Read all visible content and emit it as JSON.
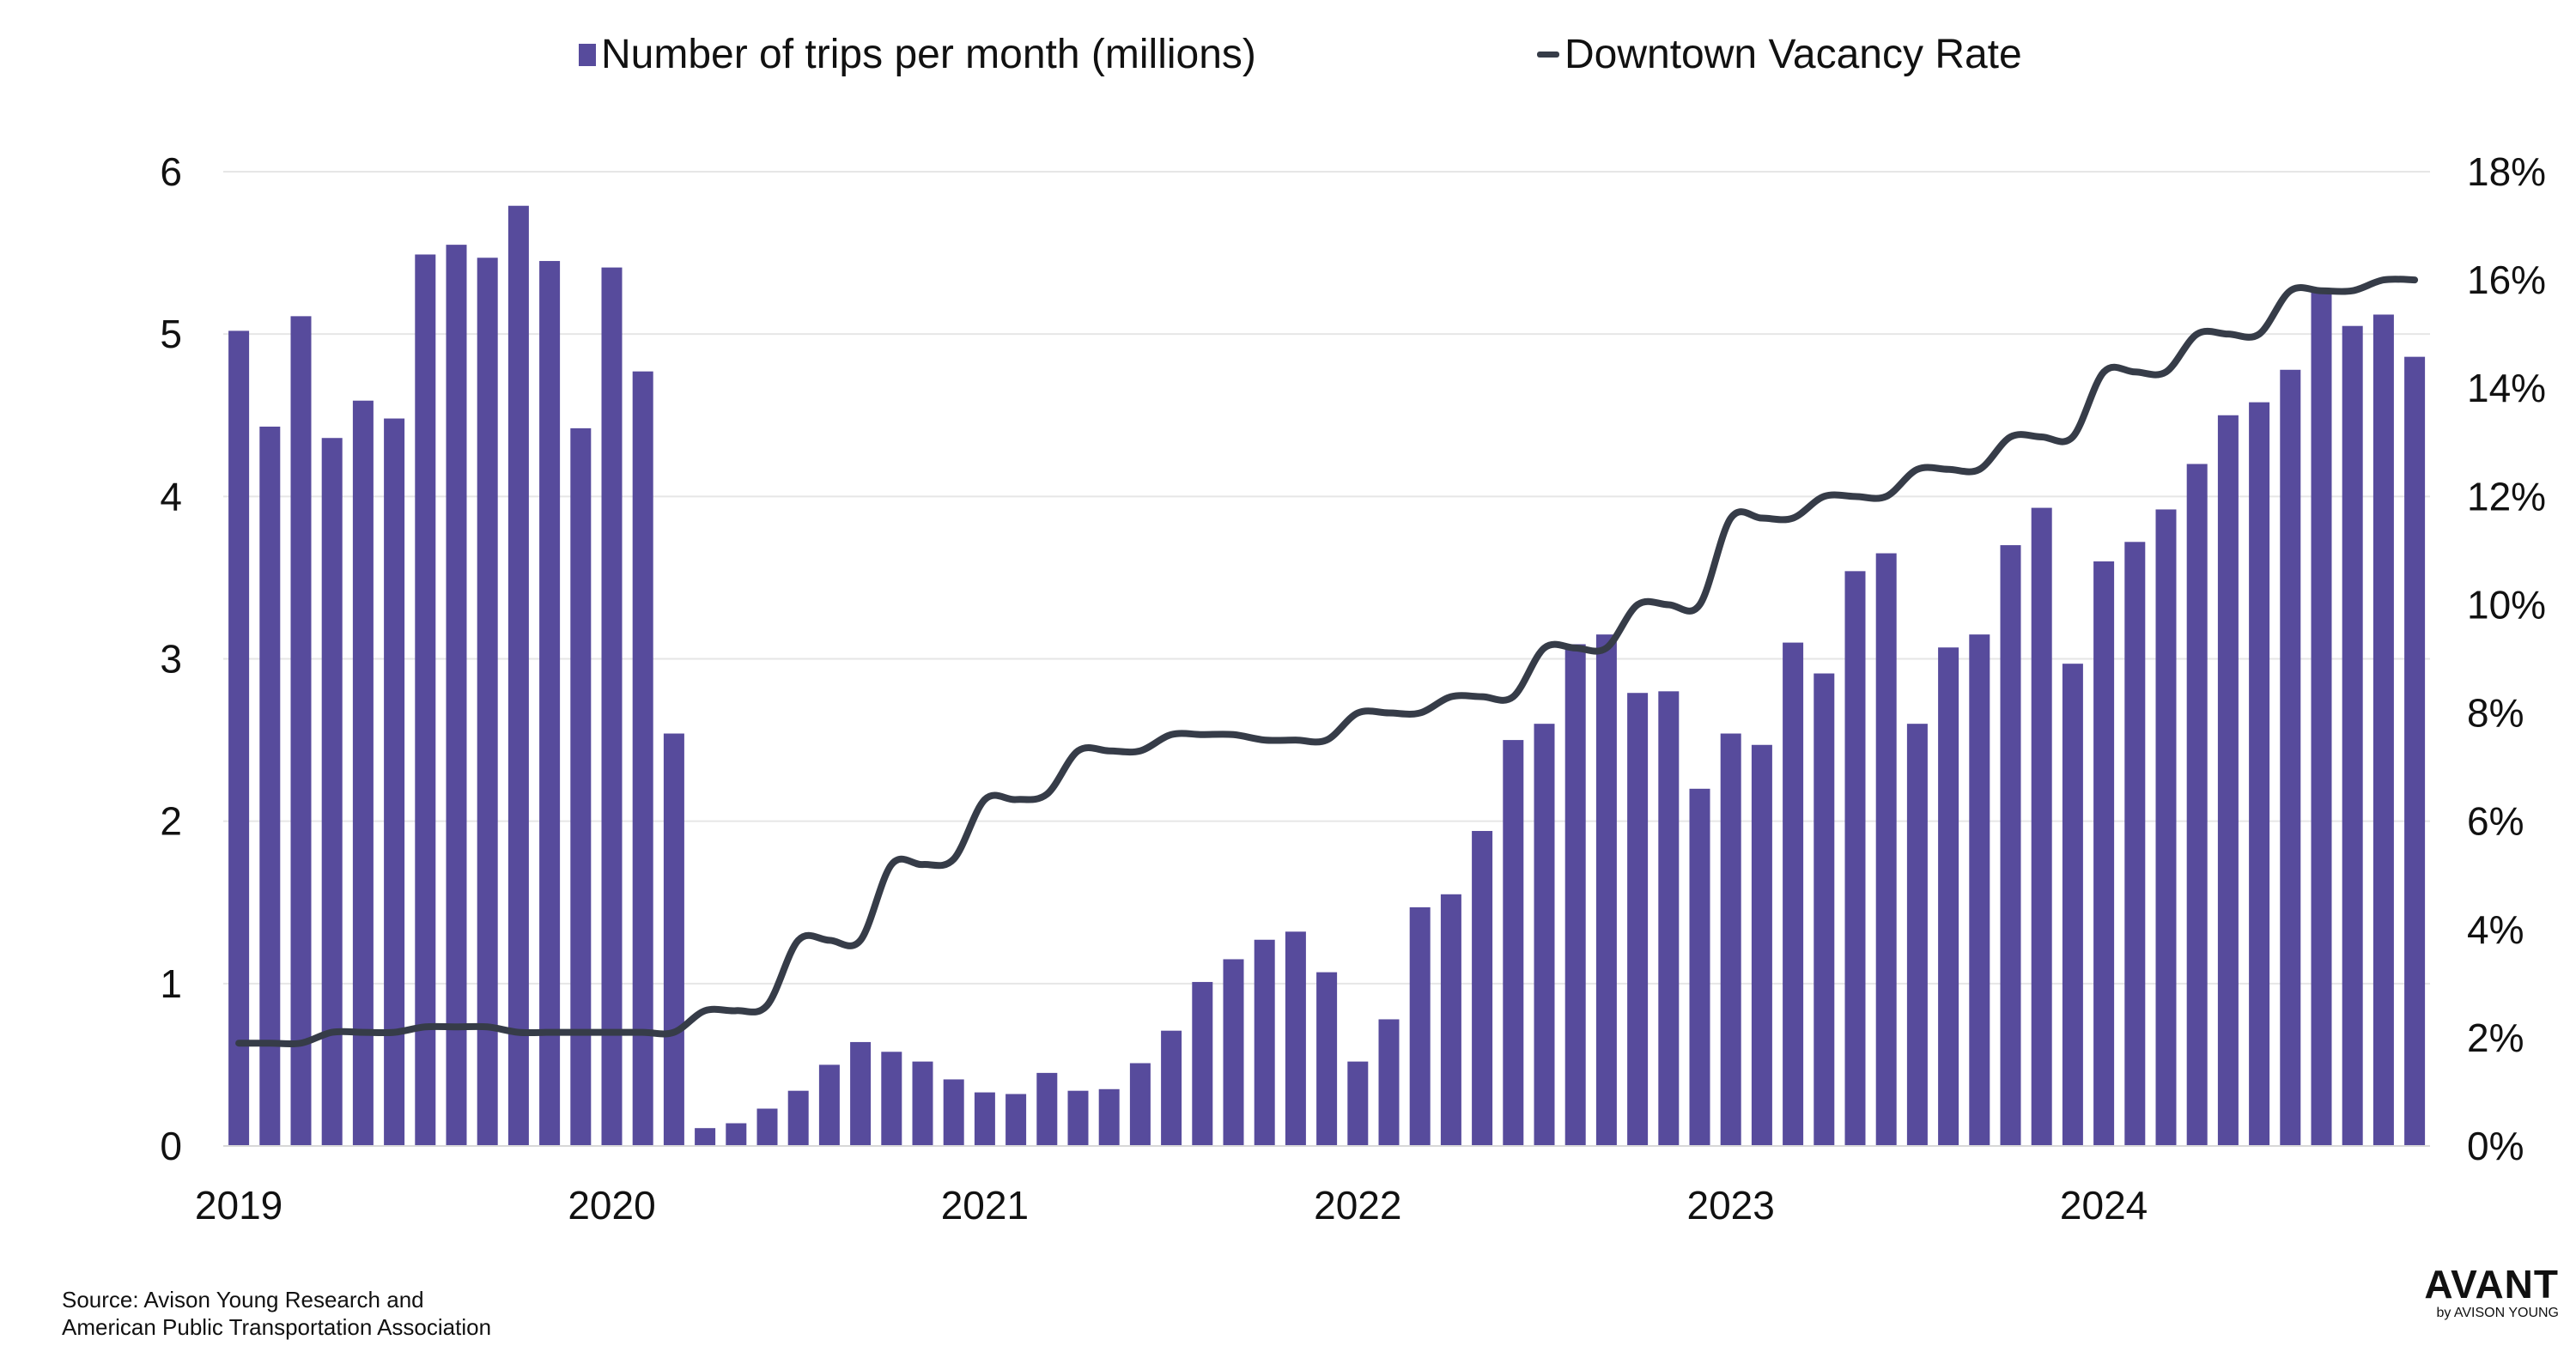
{
  "colors": {
    "bars": "#574b9c",
    "line": "#363c48",
    "grid": "#e6e6e6",
    "text": "#111111"
  },
  "legend": {
    "bars_label": "Number of trips per month (millions)",
    "line_label": "Downtown Vacancy Rate"
  },
  "source": {
    "line1": "Source: Avison Young Research and",
    "line2": "American Public Transportation Association"
  },
  "logo": {
    "brand": "AVANT",
    "tagline": "by AVISON YOUNG"
  },
  "chart_data": {
    "type": "bar+line",
    "title": "",
    "x_tick_labels": [
      "2019",
      "2020",
      "2021",
      "2022",
      "2023",
      "2024"
    ],
    "x_tick_month_index": [
      0,
      12,
      24,
      36,
      48,
      60
    ],
    "y_left": {
      "ticks": [
        "0",
        "1",
        "2",
        "3",
        "4",
        "5",
        "6"
      ],
      "lim": [
        0,
        6
      ]
    },
    "y_right": {
      "ticks": [
        "0%",
        "2%",
        "4%",
        "6%",
        "8%",
        "10%",
        "12%",
        "14%",
        "16%",
        "18%"
      ],
      "lim": [
        0,
        18
      ]
    },
    "grid": true,
    "legend_position": "top",
    "series": [
      {
        "name": "Number of trips per month (millions)",
        "type": "bar",
        "axis": "left",
        "values": [
          5.02,
          4.43,
          5.11,
          4.36,
          4.59,
          4.48,
          5.49,
          5.55,
          5.47,
          5.79,
          5.45,
          4.42,
          5.41,
          4.77,
          2.54,
          0.11,
          0.14,
          0.23,
          0.34,
          0.5,
          0.64,
          0.58,
          0.52,
          0.41,
          0.33,
          0.32,
          0.45,
          0.34,
          0.35,
          0.51,
          0.71,
          1.01,
          1.15,
          1.27,
          1.32,
          1.07,
          0.52,
          0.78,
          1.47,
          1.55,
          1.94,
          2.5,
          2.6,
          3.09,
          3.15,
          2.79,
          2.8,
          2.2,
          2.54,
          2.47,
          3.1,
          2.91,
          3.54,
          3.65,
          2.6,
          3.07,
          3.15,
          3.7,
          3.93,
          2.97,
          3.6,
          3.72,
          3.92,
          4.2,
          4.5,
          4.58,
          4.78,
          5.27,
          5.05,
          5.12,
          4.86
        ]
      },
      {
        "name": "Downtown Vacancy Rate",
        "type": "line",
        "axis": "right",
        "values": [
          1.9,
          1.9,
          1.9,
          2.1,
          2.1,
          2.1,
          2.2,
          2.2,
          2.2,
          2.1,
          2.1,
          2.1,
          2.1,
          2.1,
          2.1,
          2.5,
          2.5,
          2.6,
          3.8,
          3.8,
          3.8,
          5.2,
          5.2,
          5.3,
          6.4,
          6.4,
          6.5,
          7.3,
          7.3,
          7.3,
          7.6,
          7.6,
          7.6,
          7.5,
          7.5,
          7.5,
          8.0,
          8.0,
          8.0,
          8.3,
          8.3,
          8.3,
          9.2,
          9.2,
          9.2,
          10.0,
          10.0,
          10.0,
          11.6,
          11.6,
          11.6,
          12.0,
          12.0,
          12.0,
          12.5,
          12.5,
          12.5,
          13.1,
          13.1,
          13.1,
          14.3,
          14.3,
          14.3,
          15.0,
          15.0,
          15.0,
          15.8,
          15.8,
          15.8,
          16.0,
          16.0
        ]
      }
    ]
  }
}
